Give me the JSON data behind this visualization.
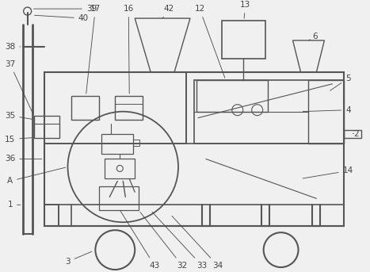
{
  "bg_color": "#f0f0f0",
  "line_color": "#555555",
  "label_color": "#444444",
  "fig_width": 4.67,
  "fig_height": 3.43,
  "dpi": 100
}
